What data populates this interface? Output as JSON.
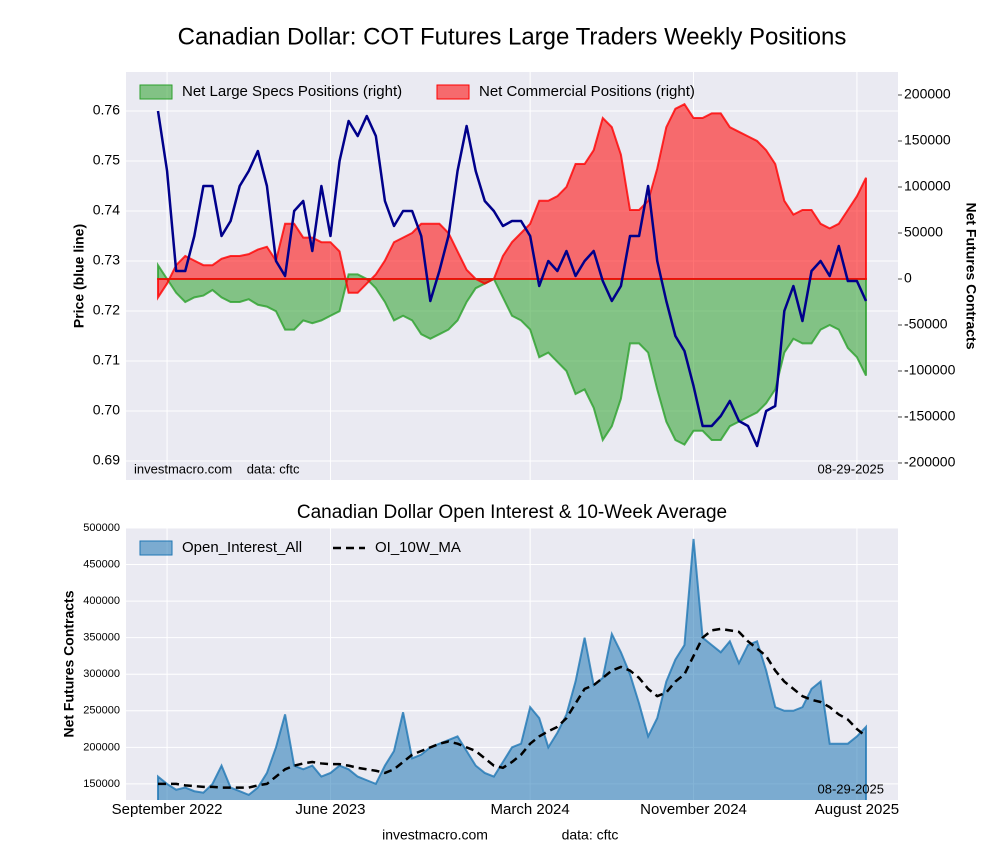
{
  "title": "Canadian Dollar: COT Futures Large Traders Weekly Positions",
  "footer": {
    "site": "investmacro.com",
    "source": "data: cftc"
  },
  "chart_data": [
    {
      "type": "line_area",
      "ylabel": "Price (blue line)",
      "y2label": "Net Futures Contracts",
      "ylim": [
        0.6862,
        0.7678
      ],
      "yticks": [
        0.69,
        {
          "value": 0.7,
          "label": "0.70"
        },
        0.71,
        0.72,
        0.73,
        0.74,
        0.75,
        0.76
      ],
      "y2lim": [
        -218500,
        225000
      ],
      "y2ticks": [
        -200000,
        -150000,
        -100000,
        -50000,
        0,
        50000,
        100000,
        150000,
        200000
      ],
      "grid": true,
      "legend": "upper left",
      "annotations": [
        "investmacro.com    data: cftc",
        "08-29-2025"
      ],
      "series": [
        {
          "name": "Net Large Specs Positions (right)",
          "color": "#2ca02c",
          "kind": "area",
          "axis": "y2",
          "values": [
            15000,
            0,
            -15000,
            -25000,
            -20000,
            -18000,
            -12000,
            -20000,
            -25000,
            -25000,
            -22000,
            -28000,
            -30000,
            -35000,
            -55000,
            -55000,
            -45000,
            -48000,
            -45000,
            -40000,
            -35000,
            5000,
            5000,
            0,
            -10000,
            -25000,
            -45000,
            -40000,
            -45000,
            -60000,
            -65000,
            -60000,
            -55000,
            -45000,
            -25000,
            -10000,
            -5000,
            0,
            -20000,
            -40000,
            -45000,
            -55000,
            -85000,
            -80000,
            -90000,
            -100000,
            -125000,
            -120000,
            -140000,
            -175000,
            -160000,
            -130000,
            -70000,
            -70000,
            -80000,
            -120000,
            -155000,
            -175000,
            -180000,
            -165000,
            -165000,
            -175000,
            -175000,
            -160000,
            -155000,
            -150000,
            -145000,
            -135000,
            -120000,
            -80000,
            -65000,
            -70000,
            -70000,
            -55000,
            -50000,
            -55000,
            -75000,
            -85000,
            -105000
          ]
        },
        {
          "name": "Net Commercial Positions (right)",
          "color": "#ff0000",
          "kind": "area",
          "axis": "y2",
          "values": [
            -20000,
            -5000,
            15000,
            25000,
            20000,
            15000,
            15000,
            22000,
            25000,
            25000,
            27000,
            32000,
            35000,
            20000,
            60000,
            60000,
            45000,
            45000,
            40000,
            40000,
            30000,
            -15000,
            -15000,
            -5000,
            5000,
            20000,
            40000,
            45000,
            50000,
            60000,
            60000,
            60000,
            50000,
            30000,
            10000,
            0,
            -5000,
            0,
            25000,
            40000,
            50000,
            60000,
            85000,
            85000,
            90000,
            100000,
            125000,
            125000,
            140000,
            175000,
            165000,
            135000,
            75000,
            75000,
            85000,
            120000,
            165000,
            185000,
            190000,
            175000,
            175000,
            180000,
            180000,
            165000,
            160000,
            155000,
            150000,
            140000,
            125000,
            85000,
            70000,
            75000,
            75000,
            60000,
            55000,
            60000,
            75000,
            90000,
            110000
          ]
        },
        {
          "name": "Price",
          "color": "#00008b",
          "kind": "line",
          "axis": "y",
          "legend": false,
          "values": [
            0.76,
            0.748,
            0.728,
            0.728,
            0.735,
            0.745,
            0.745,
            0.735,
            0.738,
            0.745,
            0.748,
            0.752,
            0.745,
            0.73,
            0.727,
            0.74,
            0.742,
            0.732,
            0.745,
            0.735,
            0.75,
            0.758,
            0.755,
            0.759,
            0.755,
            0.742,
            0.737,
            0.74,
            0.74,
            0.735,
            0.722,
            0.728,
            0.735,
            0.748,
            0.757,
            0.748,
            0.742,
            0.74,
            0.737,
            0.738,
            0.738,
            0.735,
            0.725,
            0.73,
            0.728,
            0.732,
            0.727,
            0.73,
            0.732,
            0.726,
            0.722,
            0.725,
            0.735,
            0.735,
            0.745,
            0.73,
            0.722,
            0.715,
            0.712,
            0.705,
            0.697,
            0.697,
            0.699,
            0.702,
            0.698,
            0.697,
            0.693,
            0.7,
            0.701,
            0.72,
            0.725,
            0.718,
            0.728,
            0.73,
            0.727,
            0.733,
            0.726,
            0.726,
            0.722
          ]
        }
      ]
    },
    {
      "type": "line_area",
      "title": "Canadian Dollar Open Interest & 10-Week Average",
      "ylabel": "Net Futures Contracts",
      "ylim": [
        128000,
        500000
      ],
      "yticks": [
        150000,
        200000,
        250000,
        300000,
        350000,
        400000,
        450000,
        500000
      ],
      "grid": true,
      "legend": "upper left",
      "annotations": [
        "08-29-2025"
      ],
      "categories": [
        null,
        "September 2022",
        null,
        null,
        null,
        null,
        null,
        null,
        null,
        null,
        null,
        null,
        null,
        null,
        null,
        null,
        null,
        null,
        null,
        "June 2023",
        null,
        null,
        null,
        null,
        null,
        null,
        null,
        null,
        null,
        null,
        null,
        null,
        null,
        null,
        null,
        null,
        null,
        null,
        null,
        null,
        null,
        "March 2024",
        null,
        null,
        null,
        null,
        null,
        null,
        null,
        null,
        null,
        null,
        null,
        null,
        null,
        null,
        null,
        null,
        null,
        "November 2024",
        null,
        null,
        null,
        null,
        null,
        null,
        null,
        null,
        null,
        null,
        null,
        null,
        null,
        null,
        null,
        null,
        null,
        "August 2025",
        null
      ],
      "series": [
        {
          "name": "Open_Interest_All",
          "color": "#1f77b4",
          "kind": "area",
          "axis": "y",
          "values": [
            160000,
            150000,
            142000,
            145000,
            140000,
            138000,
            150000,
            175000,
            145000,
            140000,
            135000,
            145000,
            165000,
            200000,
            245000,
            175000,
            170000,
            175000,
            160000,
            165000,
            175000,
            170000,
            160000,
            155000,
            150000,
            175000,
            195000,
            248000,
            185000,
            190000,
            200000,
            205000,
            210000,
            215000,
            195000,
            175000,
            165000,
            160000,
            180000,
            200000,
            205000,
            255000,
            240000,
            200000,
            220000,
            245000,
            290000,
            350000,
            285000,
            295000,
            355000,
            330000,
            300000,
            260000,
            215000,
            240000,
            290000,
            320000,
            340000,
            485000,
            350000,
            340000,
            330000,
            345000,
            315000,
            340000,
            345000,
            305000,
            255000,
            250000,
            250000,
            255000,
            280000,
            290000,
            205000,
            205000,
            205000,
            215000,
            228000
          ]
        },
        {
          "name": "OI_10W_MA",
          "color": "#000000",
          "kind": "line",
          "axis": "y",
          "linestyle": "dashed",
          "values": [
            150000,
            150000,
            150000,
            148000,
            147000,
            146000,
            146000,
            145000,
            145000,
            145000,
            145000,
            148000,
            150000,
            160000,
            170000,
            175000,
            178000,
            180000,
            178000,
            177000,
            177000,
            175000,
            172000,
            170000,
            168000,
            165000,
            170000,
            180000,
            190000,
            195000,
            200000,
            205000,
            208000,
            205000,
            200000,
            195000,
            185000,
            175000,
            172000,
            180000,
            190000,
            205000,
            215000,
            222000,
            228000,
            240000,
            260000,
            280000,
            285000,
            295000,
            305000,
            310000,
            305000,
            295000,
            280000,
            270000,
            275000,
            290000,
            300000,
            325000,
            350000,
            360000,
            362000,
            360000,
            358000,
            345000,
            335000,
            325000,
            305000,
            290000,
            280000,
            270000,
            265000,
            262000,
            255000,
            245000,
            238000,
            225000,
            215000
          ]
        }
      ]
    }
  ]
}
